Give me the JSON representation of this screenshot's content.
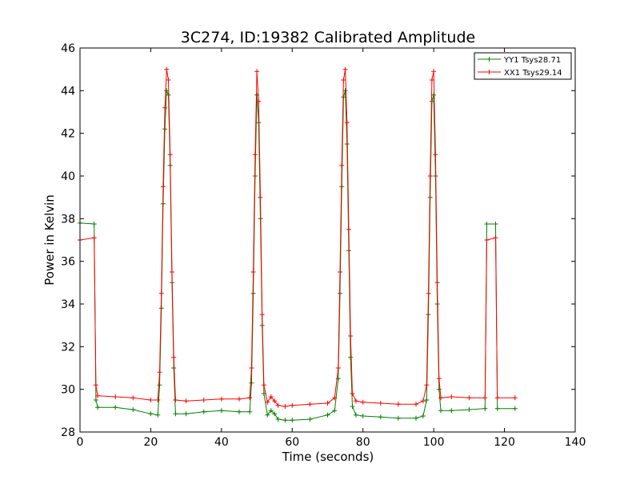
{
  "chart_data": {
    "type": "line",
    "title": "3C274, ID:19382 Calibrated Amplitude",
    "xlabel": "Time (seconds)",
    "ylabel": "Power in Kelvin",
    "xlim": [
      0,
      140
    ],
    "ylim": [
      28,
      46
    ],
    "x_ticks": [
      0,
      20,
      40,
      60,
      80,
      100,
      120,
      140
    ],
    "y_ticks": [
      28,
      30,
      32,
      34,
      36,
      38,
      40,
      42,
      44,
      46
    ],
    "grid": false,
    "legend_position": "top-right",
    "marker": "plus",
    "series": [
      {
        "name": "YY1 Tsys28.71",
        "color": "#008000",
        "x": [
          0,
          4,
          4.5,
          5,
          10,
          15,
          20,
          22,
          22.5,
          23,
          23.5,
          24,
          24.5,
          25,
          25.5,
          26,
          26.5,
          27,
          30,
          35,
          40,
          45,
          48,
          48.5,
          49,
          49.5,
          50,
          50.5,
          51,
          51.5,
          52,
          53,
          54,
          55,
          56,
          58,
          60,
          65,
          70,
          72,
          73,
          73.5,
          74,
          74.5,
          75,
          75.5,
          76,
          76.5,
          77,
          78,
          80,
          85,
          90,
          95,
          97,
          98,
          98.5,
          99,
          99.5,
          100,
          100.5,
          101,
          101.5,
          102,
          105,
          110,
          114.5,
          115,
          117.5,
          118,
          123
        ],
        "y": [
          37.8,
          37.75,
          29.5,
          29.15,
          29.15,
          29.05,
          28.85,
          28.8,
          30.2,
          33.8,
          38.7,
          42.2,
          44.0,
          43.8,
          40.5,
          35.0,
          31.0,
          28.85,
          28.85,
          28.95,
          29.0,
          28.95,
          28.95,
          30.3,
          34.5,
          40.0,
          43.8,
          42.5,
          38.0,
          33.0,
          29.8,
          28.8,
          29.0,
          28.85,
          28.6,
          28.55,
          28.55,
          28.6,
          28.8,
          29.0,
          30.5,
          34.5,
          39.5,
          43.7,
          44.0,
          41.5,
          36.5,
          31.5,
          29.2,
          28.8,
          28.75,
          28.7,
          28.65,
          28.65,
          28.75,
          29.5,
          33.5,
          39.0,
          43.5,
          43.8,
          40.0,
          34.0,
          30.0,
          29.0,
          29.0,
          29.05,
          29.1,
          37.75,
          37.75,
          29.1,
          29.1
        ]
      },
      {
        "name": "XX1 Tsys29.14",
        "color": "#ff0000",
        "x": [
          0,
          4,
          4.5,
          5,
          10,
          15,
          20,
          22,
          22.5,
          23,
          23.5,
          24,
          24.5,
          25,
          25.5,
          26,
          26.5,
          27,
          30,
          35,
          40,
          45,
          48,
          48.5,
          49,
          49.5,
          50,
          50.5,
          51,
          51.5,
          52,
          53,
          54,
          55,
          56,
          58,
          60,
          65,
          70,
          72,
          73,
          73.5,
          74,
          74.5,
          75,
          75.5,
          76,
          76.5,
          77,
          78,
          80,
          85,
          90,
          95,
          97,
          98,
          98.5,
          99,
          99.5,
          100,
          100.5,
          101,
          101.5,
          102,
          105,
          110,
          114.5,
          115,
          117.5,
          118,
          123
        ],
        "y": [
          37.0,
          37.1,
          30.2,
          29.7,
          29.65,
          29.6,
          29.5,
          29.5,
          30.8,
          34.5,
          39.5,
          43.2,
          45.0,
          44.5,
          41.0,
          35.5,
          31.5,
          29.5,
          29.45,
          29.5,
          29.55,
          29.55,
          29.6,
          31.0,
          35.5,
          41.0,
          44.9,
          43.5,
          39.0,
          33.5,
          30.2,
          29.4,
          29.65,
          29.45,
          29.25,
          29.2,
          29.25,
          29.3,
          29.35,
          29.6,
          31.0,
          35.5,
          40.5,
          44.5,
          45.0,
          42.5,
          37.5,
          32.5,
          29.8,
          29.45,
          29.4,
          29.35,
          29.3,
          29.3,
          29.45,
          30.2,
          34.5,
          40.0,
          44.5,
          44.9,
          41.0,
          35.0,
          30.5,
          29.6,
          29.65,
          29.6,
          29.6,
          37.0,
          37.1,
          29.6,
          29.6
        ]
      }
    ]
  }
}
